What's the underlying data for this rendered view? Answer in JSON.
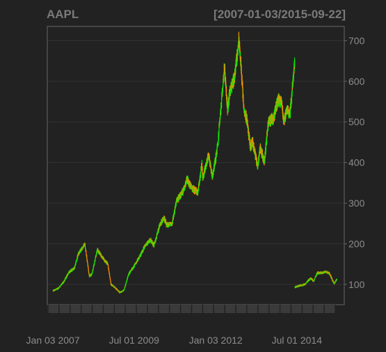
{
  "chart_data": {
    "type": "candlestick",
    "title": "AAPL",
    "range_label": "[2007-01-03/2015-09-22]",
    "x_tick_labels": [
      "Jan 03 2007",
      "Jul 01 2009",
      "Jan 03 2012",
      "Jul 01 2014"
    ],
    "y_ticks": [
      100,
      200,
      300,
      400,
      500,
      600,
      700
    ],
    "y_axis_position": "right",
    "ylim": [
      50,
      735
    ],
    "xlim": [
      "2006-11-01",
      "2015-12-15"
    ],
    "grid": true,
    "colors": {
      "background": "#222222",
      "plot_border": "#666666",
      "grid": "#333333",
      "up": "#00ee00",
      "down": "#ff8c00",
      "text": "#8c8c8c"
    },
    "series": [
      {
        "values": [
          [
            "2007-01-03",
            84
          ],
          [
            "2007-03-01",
            90
          ],
          [
            "2007-05-01",
            105
          ],
          [
            "2007-07-01",
            130
          ],
          [
            "2007-09-01",
            140
          ],
          [
            "2007-10-15",
            175
          ],
          [
            "2007-12-27",
            199
          ],
          [
            "2008-01-22",
            160
          ],
          [
            "2008-02-15",
            120
          ],
          [
            "2008-03-15",
            125
          ],
          [
            "2008-05-15",
            185
          ],
          [
            "2008-06-15",
            175
          ],
          [
            "2008-08-01",
            160
          ],
          [
            "2008-09-10",
            150
          ],
          [
            "2008-10-15",
            100
          ],
          [
            "2008-12-01",
            92
          ],
          [
            "2009-01-20",
            80
          ],
          [
            "2009-03-09",
            85
          ],
          [
            "2009-05-01",
            125
          ],
          [
            "2009-07-01",
            145
          ],
          [
            "2009-09-01",
            168
          ],
          [
            "2009-11-01",
            195
          ],
          [
            "2010-01-01",
            210
          ],
          [
            "2010-02-10",
            195
          ],
          [
            "2010-04-15",
            245
          ],
          [
            "2010-06-01",
            265
          ],
          [
            "2010-07-01",
            245
          ],
          [
            "2010-09-01",
            250
          ],
          [
            "2010-10-20",
            305
          ],
          [
            "2011-01-01",
            330
          ],
          [
            "2011-02-15",
            360
          ],
          [
            "2011-04-01",
            340
          ],
          [
            "2011-06-15",
            325
          ],
          [
            "2011-08-01",
            395
          ],
          [
            "2011-08-10",
            360
          ],
          [
            "2011-10-15",
            420
          ],
          [
            "2011-11-25",
            365
          ],
          [
            "2012-01-03",
            410
          ],
          [
            "2012-01-30",
            450
          ],
          [
            "2012-02-15",
            500
          ],
          [
            "2012-03-05",
            540
          ],
          [
            "2012-04-09",
            636
          ],
          [
            "2012-05-15",
            530
          ],
          [
            "2012-06-15",
            580
          ],
          [
            "2012-08-01",
            610
          ],
          [
            "2012-09-19",
            702
          ],
          [
            "2012-10-15",
            630
          ],
          [
            "2012-11-15",
            525
          ],
          [
            "2012-12-15",
            510
          ],
          [
            "2013-01-25",
            440
          ],
          [
            "2013-02-20",
            450
          ],
          [
            "2013-04-19",
            390
          ],
          [
            "2013-05-15",
            440
          ],
          [
            "2013-07-01",
            400
          ],
          [
            "2013-08-15",
            500
          ],
          [
            "2013-10-15",
            510
          ],
          [
            "2013-12-01",
            555
          ],
          [
            "2014-01-15",
            550
          ],
          [
            "2014-02-01",
            500
          ],
          [
            "2014-03-15",
            530
          ],
          [
            "2014-04-15",
            520
          ],
          [
            "2014-05-15",
            590
          ],
          [
            "2014-06-06",
            648
          ],
          [
            "2014-06-09",
            93
          ],
          [
            "2014-08-01",
            97
          ],
          [
            "2014-10-01",
            100
          ],
          [
            "2014-12-01",
            115
          ],
          [
            "2015-01-05",
            108
          ],
          [
            "2015-02-15",
            128
          ],
          [
            "2015-04-15",
            128
          ],
          [
            "2015-05-20",
            132
          ],
          [
            "2015-07-01",
            127
          ],
          [
            "2015-08-24",
            102
          ],
          [
            "2015-09-22",
            113
          ]
        ]
      }
    ]
  }
}
